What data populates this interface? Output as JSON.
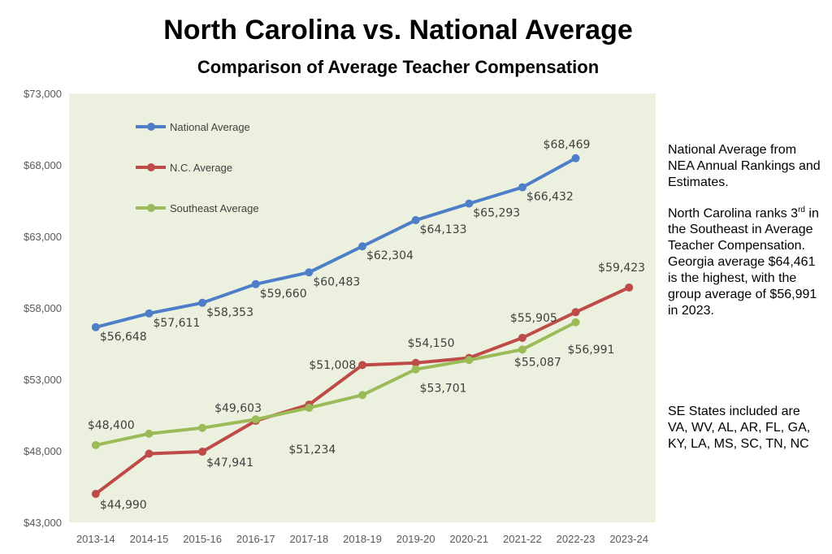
{
  "title": "North Carolina vs. National Average",
  "subtitle": "Comparison of Average Teacher Compensation",
  "notes": {
    "nea": "National Average from NEA Annual Rankings and Estimates.",
    "rank_pre": "North Carolina ranks 3",
    "rank_sup": "rd",
    "rank_post": " in the Southeast in Average Teacher Compensation. Georgia average $64,461 is the highest, with the group average of $56,991 in 2023.",
    "states": "SE States included are VA, WV, AL, AR, FL, GA, KY, LA, MS, SC, TN, NC"
  },
  "colors": {
    "plot_bg": "#ebf1de",
    "national": "#4f7ec9",
    "nc": "#be4b48",
    "southeast": "#9bbb59",
    "label_text": "#404040"
  },
  "chart_data": {
    "type": "line",
    "categories": [
      "2013-14",
      "2014-15",
      "2015-16",
      "2016-17",
      "2017-18",
      "2018-19",
      "2019-20",
      "2020-21",
      "2021-22",
      "2022-23",
      "2023-24"
    ],
    "ylim": [
      43000,
      73000
    ],
    "yticks": [
      43000,
      48000,
      53000,
      58000,
      63000,
      68000,
      73000
    ],
    "ytick_labels": [
      "$43,000",
      "$48,000",
      "$53,000",
      "$58,000",
      "$63,000",
      "$68,000",
      "$73,000"
    ],
    "grid": false,
    "legend_position": "top-left",
    "series": [
      {
        "name": "National Average",
        "values": [
          56648,
          57611,
          58353,
          59660,
          60483,
          62304,
          64133,
          65293,
          66432,
          68469,
          null
        ],
        "labels": [
          "$56,648",
          "$57,611",
          "$58,353",
          "$59,660",
          "$60,483",
          "$62,304",
          "$64,133",
          "$65,293",
          "$66,432",
          "$68,469",
          ""
        ]
      },
      {
        "name": "N.C. Average",
        "values": [
          44990,
          47800,
          47941,
          50100,
          51234,
          54000,
          54150,
          54500,
          55905,
          57700,
          59423
        ],
        "labels": [
          "$44,990",
          "",
          "$47,941",
          "",
          "$51,234",
          "",
          "$54,150",
          "",
          "$55,905",
          "",
          "$59,423"
        ]
      },
      {
        "name": "Southeast  Average",
        "values": [
          48400,
          49200,
          49603,
          50200,
          51008,
          51900,
          53701,
          54350,
          55087,
          56991,
          null
        ],
        "labels": [
          "$48,400",
          "",
          "$49,603",
          "",
          "$51,008",
          "",
          "$53,701",
          "",
          "$55,087",
          "$56,991",
          ""
        ]
      }
    ]
  }
}
